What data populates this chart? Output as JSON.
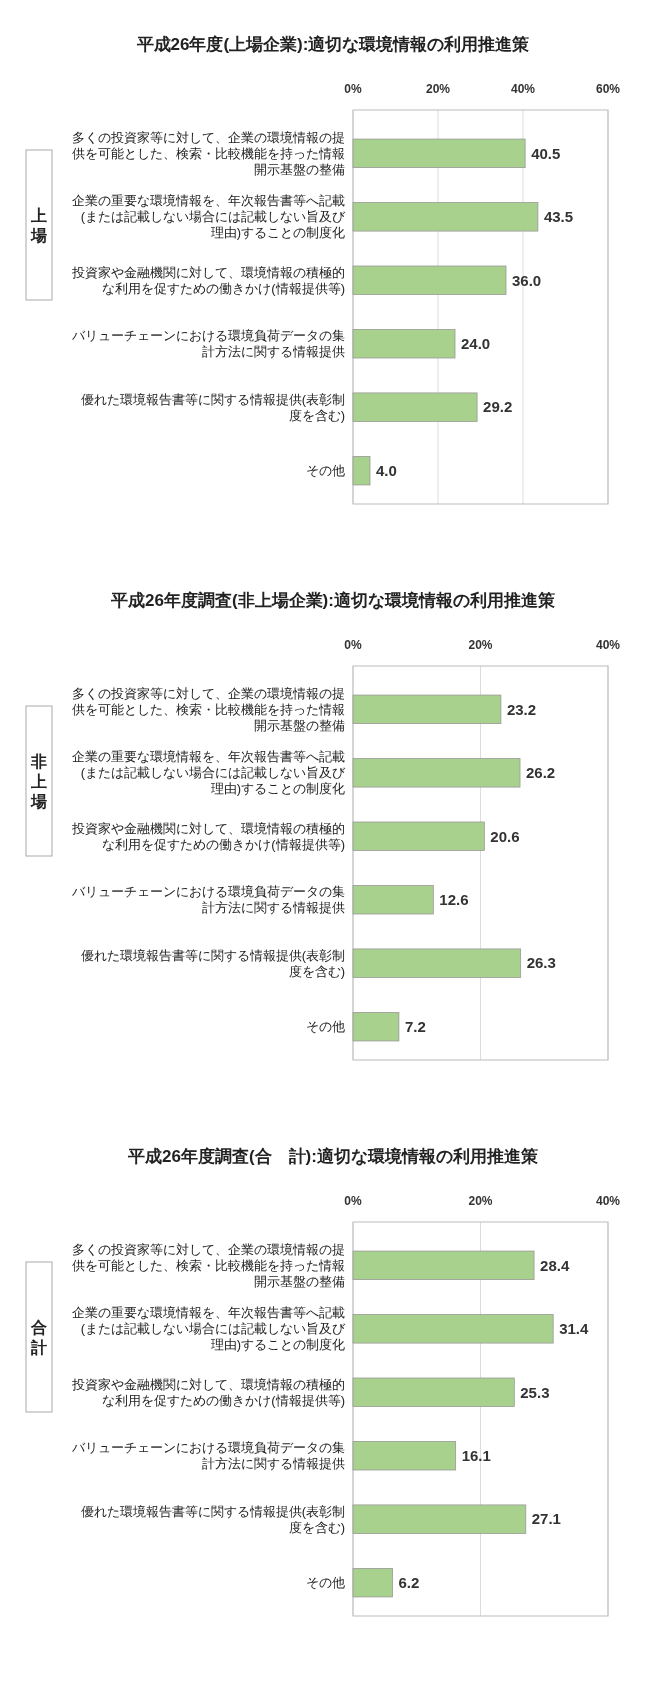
{
  "chart_data": [
    {
      "type": "bar",
      "orientation": "horizontal",
      "title": "平成26年度(上場企業):適切な環境情報の利用推進策",
      "annotations": [
        "上場"
      ],
      "categories": [
        "多くの投資家等に対して、企業の環境情報の提供を可能とした、検索・比較機能を持った情報開示基盤の整備",
        "企業の重要な環境情報を、年次報告書等へ記載(または記載しない場合には記載しない旨及び理由)することの制度化",
        "投資家や金融機関に対して、環境情報の積極的な利用を促すための働きかけ(情報提供等)",
        "バリューチェーンにおける環境負荷データの集計方法に関する情報提供",
        "優れた環境報告書等に関する情報提供(表彰制度を含む)",
        "その他"
      ],
      "values": [
        40.5,
        43.5,
        36.0,
        24.0,
        29.2,
        4.0
      ],
      "value_labels": [
        "40.5",
        "43.5",
        "36.0",
        "24.0",
        "29.2",
        "4.0"
      ],
      "color": "#a9d18e",
      "xlim": [
        0,
        60
      ],
      "xticks": [
        {
          "value": 0,
          "label": "0%"
        },
        {
          "value": 20,
          "label": "20%"
        },
        {
          "value": 40,
          "label": "40%"
        },
        {
          "value": 60,
          "label": "60%"
        }
      ],
      "grid": "x"
    },
    {
      "type": "bar",
      "orientation": "horizontal",
      "title": "平成26年度調査(非上場企業):適切な環境情報の利用推進策",
      "annotations": [
        "非上場"
      ],
      "categories": [
        "多くの投資家等に対して、企業の環境情報の提供を可能とした、検索・比較機能を持った情報開示基盤の整備",
        "企業の重要な環境情報を、年次報告書等へ記載(または記載しない場合には記載しない旨及び理由)することの制度化",
        "投資家や金融機関に対して、環境情報の積極的な利用を促すための働きかけ(情報提供等)",
        "バリューチェーンにおける環境負荷データの集計方法に関する情報提供",
        "優れた環境報告書等に関する情報提供(表彰制度を含む)",
        "その他"
      ],
      "values": [
        23.2,
        26.2,
        20.6,
        12.6,
        26.3,
        7.2
      ],
      "value_labels": [
        "23.2",
        "26.2",
        "20.6",
        "12.6",
        "26.3",
        "7.2"
      ],
      "color": "#a9d18e",
      "xlim": [
        0,
        40
      ],
      "xticks": [
        {
          "value": 0,
          "label": "0%"
        },
        {
          "value": 20,
          "label": "20%"
        },
        {
          "value": 40,
          "label": "40%"
        }
      ],
      "grid": "x"
    },
    {
      "type": "bar",
      "orientation": "horizontal",
      "title": "平成26年度調査(合　計):適切な環境情報の利用推進策",
      "annotations": [
        "合計"
      ],
      "categories": [
        "多くの投資家等に対して、企業の環境情報の提供を可能とした、検索・比較機能を持った情報開示基盤の整備",
        "企業の重要な環境情報を、年次報告書等へ記載(または記載しない場合には記載しない旨及び理由)することの制度化",
        "投資家や金融機関に対して、環境情報の積極的な利用を促すための働きかけ(情報提供等)",
        "バリューチェーンにおける環境負荷データの集計方法に関する情報提供",
        "優れた環境報告書等に関する情報提供(表彰制度を含む)",
        "その他"
      ],
      "values": [
        28.4,
        31.4,
        25.3,
        16.1,
        27.1,
        6.2
      ],
      "value_labels": [
        "28.4",
        "31.4",
        "25.3",
        "16.1",
        "27.1",
        "6.2"
      ],
      "color": "#a9d18e",
      "xlim": [
        0,
        40
      ],
      "xticks": [
        {
          "value": 0,
          "label": "0%"
        },
        {
          "value": 20,
          "label": "20%"
        },
        {
          "value": 40,
          "label": "40%"
        }
      ],
      "grid": "x"
    }
  ]
}
